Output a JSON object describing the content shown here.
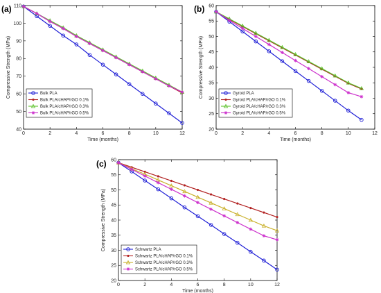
{
  "chart_data": [
    {
      "type": "line",
      "panel_label": "(a)",
      "xlabel": "Time (months)",
      "ylabel": "Compressive Strength (MPa)",
      "xlim": [
        0,
        12
      ],
      "ylim": [
        40,
        110
      ],
      "xticks": [
        "0",
        "2",
        "4",
        "6",
        "8",
        "10",
        "12"
      ],
      "yticks": [
        "40",
        "50",
        "60",
        "70",
        "80",
        "90",
        "100",
        "110"
      ],
      "grid": false,
      "legend_position": "bottom-left",
      "series": [
        {
          "name": "Bulk PLA",
          "color": "#1f1fd6",
          "marker": "circle",
          "x": [
            0,
            1,
            2,
            3,
            4,
            5,
            6,
            7,
            8,
            9,
            10,
            11,
            12
          ],
          "y": [
            109.5,
            104,
            98.5,
            93,
            88,
            82,
            76.5,
            71,
            65.5,
            60,
            54.5,
            49,
            43.5
          ]
        },
        {
          "name": "Bulk PLA/cHAP/rGO 0.1%",
          "color": "#b22222",
          "marker": "dot",
          "x": [
            0,
            1,
            2,
            3,
            4,
            5,
            6,
            7,
            8,
            9,
            10,
            11,
            12
          ],
          "y": [
            109.5,
            105.5,
            101,
            97,
            92.5,
            88.5,
            84.5,
            80.5,
            76.5,
            72.5,
            68.5,
            64.5,
            60.5
          ]
        },
        {
          "name": "Bulk PLA/cHAP/rGO 0.3%",
          "color": "#5cc22a",
          "marker": "triangle",
          "x": [
            0,
            1,
            2,
            3,
            4,
            5,
            6,
            7,
            8,
            9,
            10,
            11,
            12
          ],
          "y": [
            109.5,
            105.5,
            101.5,
            97.5,
            93,
            89,
            85,
            81,
            77,
            73,
            69,
            65,
            61
          ]
        },
        {
          "name": "Bulk PLA/cHAP/rGO 0.5%",
          "color": "#cc2fcc",
          "marker": "star",
          "x": [
            0,
            1,
            2,
            3,
            4,
            5,
            6,
            7,
            8,
            9,
            10,
            11,
            12
          ],
          "y": [
            109.5,
            105.5,
            101,
            97,
            92.5,
            88.5,
            84.5,
            80.5,
            76.5,
            72.5,
            68.5,
            64.5,
            61
          ]
        }
      ]
    },
    {
      "type": "line",
      "panel_label": "(b)",
      "xlabel": "Time (months)",
      "ylabel": "Compressive Strength (MPa)",
      "xlim": [
        0,
        12
      ],
      "ylim": [
        20,
        60
      ],
      "xticks": [
        "0",
        "2",
        "4",
        "6",
        "8",
        "10",
        "12"
      ],
      "yticks": [
        "20",
        "25",
        "30",
        "35",
        "40",
        "45",
        "50",
        "55",
        "60"
      ],
      "grid": false,
      "legend_position": "bottom-left",
      "series": [
        {
          "name": "Gyroid PLA",
          "color": "#1f1fd6",
          "marker": "circle",
          "x": [
            0,
            1,
            2,
            3,
            4,
            5,
            6,
            7,
            8,
            9,
            10,
            11
          ],
          "y": [
            58,
            54.8,
            51.6,
            48.4,
            45.2,
            42,
            38.8,
            35.6,
            32.4,
            29.2,
            26,
            23
          ]
        },
        {
          "name": "Gyroid PLA/cHAP/rGO 0.1%",
          "color": "#b22222",
          "marker": "dot",
          "x": [
            0,
            1,
            2,
            3,
            4,
            5,
            6,
            7,
            8,
            9,
            10,
            11
          ],
          "y": [
            58,
            55.5,
            53.2,
            50.9,
            48.6,
            46.3,
            44,
            41.7,
            39.4,
            37.1,
            34.8,
            33
          ]
        },
        {
          "name": "Gyroid PLA/cHAP/rGO 0.3%",
          "color": "#5cc22a",
          "marker": "triangle",
          "x": [
            0,
            1,
            2,
            3,
            4,
            5,
            6,
            7,
            8,
            9,
            10,
            11
          ],
          "y": [
            58,
            55.7,
            53.4,
            51.1,
            48.8,
            46.5,
            44.2,
            41.9,
            39.6,
            37.3,
            35,
            33.2
          ]
        },
        {
          "name": "Gyroid PLA/cHAP/rGO 0.5%",
          "color": "#cc2fcc",
          "marker": "star",
          "x": [
            0,
            1,
            2,
            3,
            4,
            5,
            6,
            7,
            8,
            9,
            10,
            11
          ],
          "y": [
            58,
            55.2,
            52.6,
            50,
            47.4,
            44.8,
            42.2,
            39.6,
            37,
            34.4,
            31.8,
            30.5
          ]
        }
      ]
    },
    {
      "type": "line",
      "panel_label": "(c)",
      "xlabel": "Time (months)",
      "ylabel": "Compressive Strength (MPa)",
      "xlim": [
        0,
        12
      ],
      "ylim": [
        20,
        60
      ],
      "xticks": [
        "0",
        "2",
        "4",
        "6",
        "8",
        "10",
        "12"
      ],
      "yticks": [
        "20",
        "25",
        "30",
        "35",
        "40",
        "45",
        "50",
        "55",
        "60"
      ],
      "grid": false,
      "legend_position": "bottom-left",
      "series": [
        {
          "name": "Schwartz PLA",
          "color": "#1f1fd6",
          "marker": "circle",
          "x": [
            0,
            1,
            2,
            3,
            4,
            5,
            6,
            7,
            8,
            9,
            10,
            11,
            12
          ],
          "y": [
            59,
            56.1,
            53.1,
            50.2,
            47.2,
            44.2,
            41.3,
            38.4,
            35.4,
            32.5,
            29.5,
            26.6,
            23.6
          ]
        },
        {
          "name": "Schwartz PLA/cHAP/rGO 0.1%",
          "color": "#b22222",
          "marker": "dot",
          "x": [
            0,
            1,
            2,
            3,
            4,
            5,
            6,
            7,
            8,
            9,
            10,
            11,
            12
          ],
          "y": [
            59,
            57.5,
            56,
            54.5,
            53,
            51.5,
            50,
            48.5,
            47,
            45.5,
            44,
            42.5,
            41
          ]
        },
        {
          "name": "Schwartz PLA/cHAP/rGO 0.3%",
          "color": "#c9b02a",
          "marker": "triangle",
          "x": [
            0,
            1,
            2,
            3,
            4,
            5,
            6,
            7,
            8,
            9,
            10,
            11,
            12
          ],
          "y": [
            59,
            57,
            55.2,
            53.3,
            51.4,
            49.5,
            47.6,
            45.7,
            43.8,
            41.9,
            40,
            38.1,
            36.5
          ]
        },
        {
          "name": "Schwartz PLA/cHAP/rGO 0.5%",
          "color": "#cc2fcc",
          "marker": "star",
          "x": [
            0,
            1,
            2,
            3,
            4,
            5,
            6,
            7,
            8,
            9,
            10,
            11,
            12
          ],
          "y": [
            59,
            56.8,
            54.6,
            52.4,
            50.2,
            48,
            45.8,
            43.6,
            41.4,
            39.2,
            37,
            34.8,
            33.5
          ]
        }
      ]
    }
  ]
}
